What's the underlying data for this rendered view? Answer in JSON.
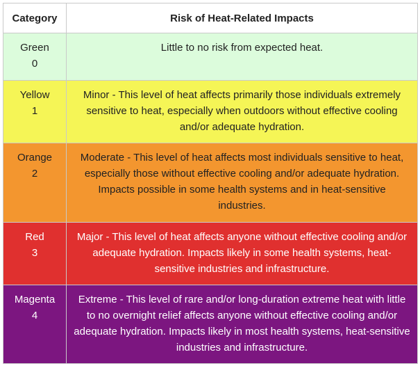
{
  "table": {
    "headers": {
      "category": "Category",
      "risk": "Risk of Heat-Related Impacts"
    },
    "rows": [
      {
        "name": "Green",
        "level": "0",
        "description": "Little to no risk from expected heat.",
        "bg": "#dcfcdc",
        "fg": "#222222"
      },
      {
        "name": "Yellow",
        "level": "1",
        "description": "Minor - This level of heat affects primarily those individuals extremely sensitive to heat, especially when outdoors without effective cooling and/or adequate hydration.",
        "bg": "#f5f556",
        "fg": "#222222"
      },
      {
        "name": "Orange",
        "level": "2",
        "description": "Moderate - This level of heat affects most individuals sensitive to heat, especially those without effective cooling and/or adequate hydration. Impacts possible in some health systems and in heat-sensitive industries.",
        "bg": "#f3962f",
        "fg": "#222222"
      },
      {
        "name": "Red",
        "level": "3",
        "description": "Major - This level of heat affects anyone without effective cooling and/or adequate hydration. Impacts likely in some health systems, heat-sensitive industries and infrastructure.",
        "bg": "#e0302f",
        "fg": "#ffffff"
      },
      {
        "name": "Magenta",
        "level": "4",
        "description": "Extreme - This level of rare and/or long-duration extreme heat with little to no overnight relief affects anyone without effective cooling and/or adequate hydration. Impacts likely in most health systems, heat-sensitive industries and infrastructure.",
        "bg": "#7c1680",
        "fg": "#ffffff"
      }
    ]
  }
}
